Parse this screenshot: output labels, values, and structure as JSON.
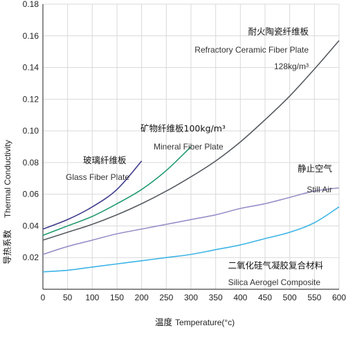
{
  "chart_data": {
    "type": "line",
    "xlabel_cn": "温度",
    "xlabel_en": "Temperature(°c)",
    "ylabel_cn": "导热系数",
    "ylabel_en": "Thermal Conductivity",
    "xlim": [
      0,
      600
    ],
    "ylim": [
      0,
      0.18
    ],
    "x_ticks": [
      "0",
      "50",
      "100",
      "150",
      "200",
      "250",
      "300",
      "350",
      "400",
      "450",
      "500",
      "550",
      "600"
    ],
    "y_ticks": [
      "0.02",
      "0.04",
      "0.06",
      "0.08",
      "0.10",
      "0.12",
      "0.14",
      "0.16",
      "0.18"
    ],
    "grid": true,
    "series": [
      {
        "label_cn": "耐火陶瓷纤维板",
        "label_en": "Refractory Ceramic Fiber Plate",
        "label_en_2": "128kg/m³",
        "color": "#555a60",
        "x": [
          0,
          50,
          100,
          150,
          200,
          250,
          300,
          350,
          400,
          450,
          500,
          550,
          600
        ],
        "y": [
          0.031,
          0.036,
          0.041,
          0.047,
          0.054,
          0.062,
          0.071,
          0.081,
          0.093,
          0.107,
          0.122,
          0.139,
          0.157
        ]
      },
      {
        "label_cn": "矿物纤维板100kg/m³",
        "label_en": "Mineral Fiber Plate",
        "color": "#1f9a6e",
        "x": [
          0,
          50,
          100,
          150,
          200,
          250,
          300
        ],
        "y": [
          0.034,
          0.04,
          0.046,
          0.054,
          0.063,
          0.075,
          0.09
        ]
      },
      {
        "label_cn": "玻璃纤维板",
        "label_en": "Glass Fiber Plate",
        "color": "#3d3a8c",
        "x": [
          0,
          50,
          100,
          150,
          200
        ],
        "y": [
          0.038,
          0.044,
          0.052,
          0.063,
          0.081
        ]
      },
      {
        "label_cn": "静止空气",
        "label_en": "Still Air",
        "color": "#9a8ec8",
        "x": [
          0,
          50,
          100,
          150,
          200,
          250,
          300,
          350,
          400,
          450,
          500,
          550,
          600
        ],
        "y": [
          0.022,
          0.027,
          0.031,
          0.035,
          0.038,
          0.041,
          0.044,
          0.047,
          0.051,
          0.054,
          0.058,
          0.062,
          0.064
        ]
      },
      {
        "label_cn": "二氧化硅气凝胶复合材料",
        "label_en": "Silica Aerogel Composite",
        "color": "#3cb4e5",
        "x": [
          0,
          50,
          100,
          150,
          200,
          250,
          300,
          350,
          400,
          450,
          500,
          550,
          600
        ],
        "y": [
          0.011,
          0.012,
          0.014,
          0.016,
          0.018,
          0.02,
          0.022,
          0.025,
          0.028,
          0.032,
          0.036,
          0.042,
          0.052
        ]
      }
    ]
  }
}
